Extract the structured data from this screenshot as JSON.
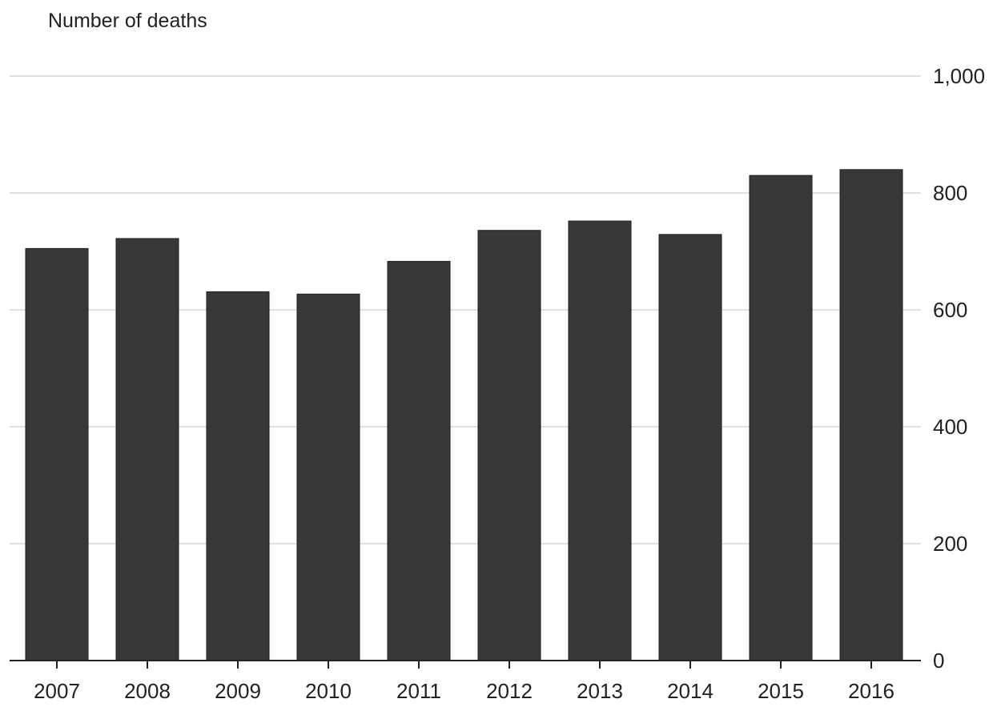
{
  "chart_data": {
    "type": "bar",
    "title": "",
    "xlabel": "",
    "ylabel": "Number of deaths",
    "categories": [
      "2007",
      "2008",
      "2009",
      "2010",
      "2011",
      "2012",
      "2013",
      "2014",
      "2015",
      "2016"
    ],
    "values": [
      705,
      722,
      631,
      627,
      683,
      736,
      752,
      729,
      830,
      840
    ],
    "ylim": [
      0,
      1000
    ],
    "yticks": [
      0,
      200,
      400,
      600,
      800,
      1000
    ],
    "ytick_labels": [
      "0",
      "200",
      "400",
      "600",
      "800",
      "1,000"
    ],
    "y_axis_side": "right",
    "grid": true,
    "legend": "none",
    "bar_color": "#383838",
    "grid_color": "#d6d6d6",
    "axis_color": "#222222"
  }
}
